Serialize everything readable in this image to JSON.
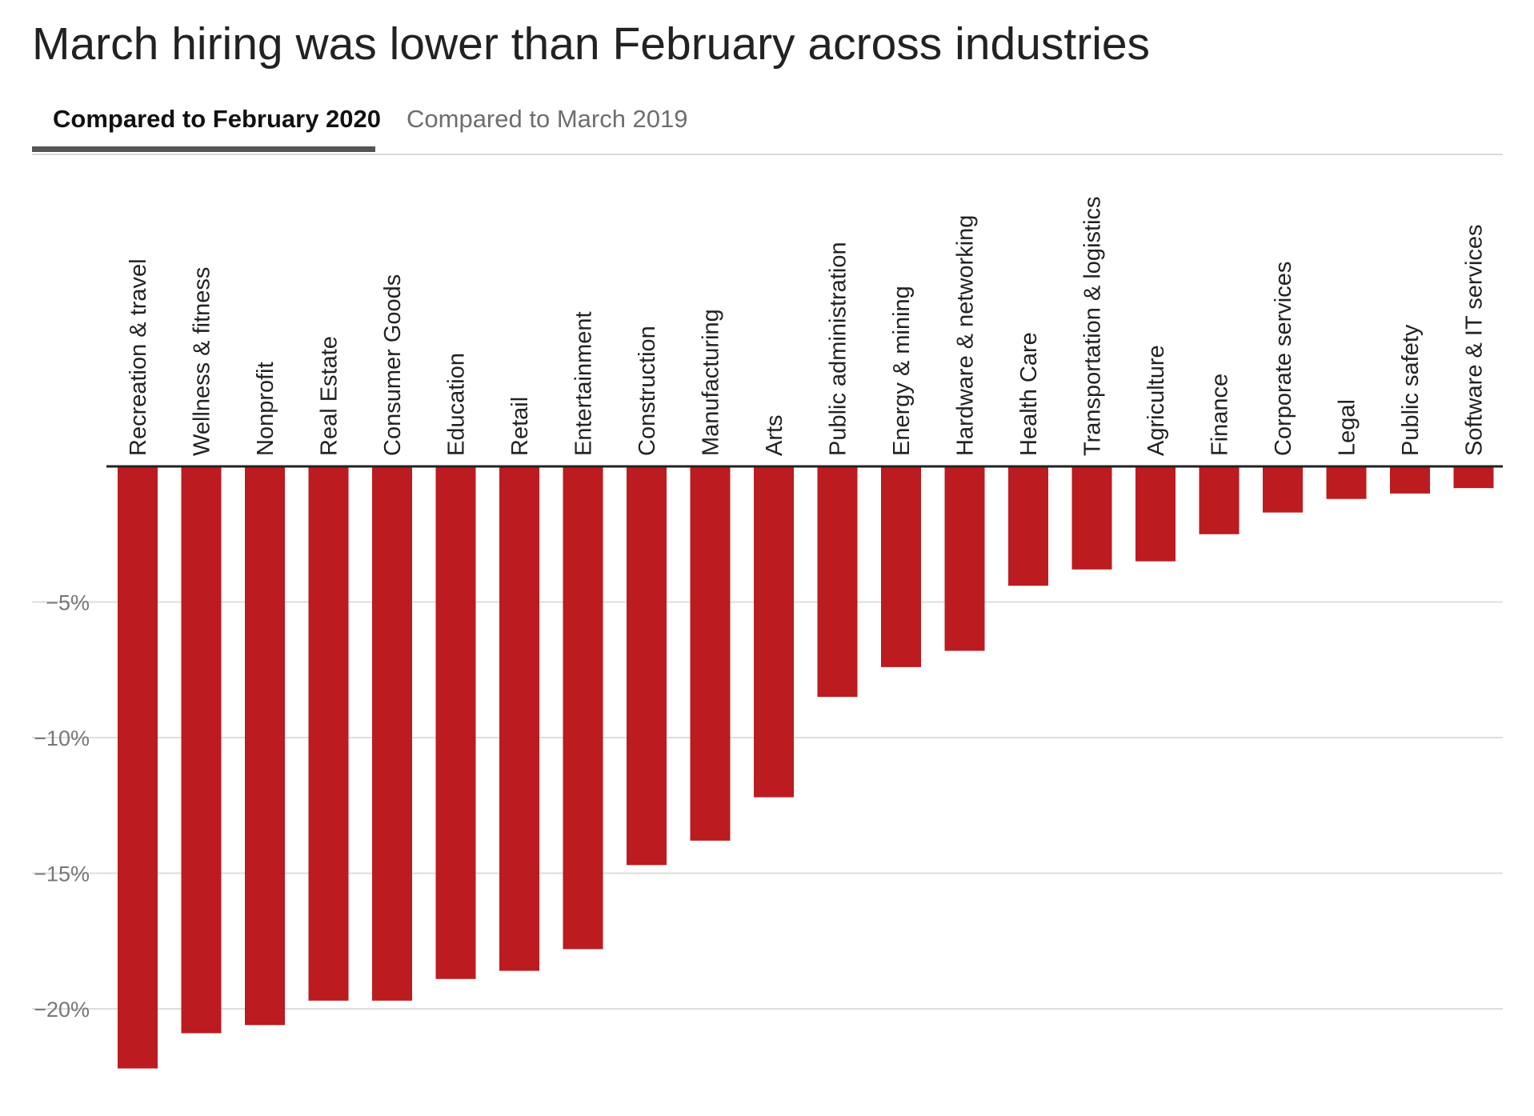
{
  "title": "March hiring was lower than February across industries",
  "tabs": [
    {
      "label": "Compared to February 2020",
      "active": true
    },
    {
      "label": "Compared to March 2019",
      "active": false
    }
  ],
  "colors": {
    "bar": "#bc1b1f",
    "gridline": "#dddddd",
    "baseline": "#222222",
    "tick_text": "#777777"
  },
  "chart_data": {
    "type": "bar",
    "title": "",
    "xlabel": "",
    "ylabel": "",
    "ylim": [
      -23,
      0
    ],
    "grid": true,
    "y_ticks": [
      -5,
      -10,
      -15,
      -20
    ],
    "y_tick_labels": [
      "−5%",
      "−10%",
      "−15%",
      "−20%"
    ],
    "categories": [
      "Recreation & travel",
      "Wellness & fitness",
      "Nonprofit",
      "Real Estate",
      "Consumer Goods",
      "Education",
      "Retail",
      "Entertainment",
      "Construction",
      "Manufacturing",
      "Arts",
      "Public administration",
      "Energy & mining",
      "Hardware & networking",
      "Health Care",
      "Transportation & logistics",
      "Agriculture",
      "Finance",
      "Corporate services",
      "Legal",
      "Public safety",
      "Software & IT services"
    ],
    "values": [
      -22.2,
      -20.9,
      -20.6,
      -19.7,
      -19.7,
      -18.9,
      -18.6,
      -17.8,
      -14.7,
      -13.8,
      -12.2,
      -8.5,
      -7.4,
      -6.8,
      -4.4,
      -3.8,
      -3.5,
      -2.5,
      -1.7,
      -1.2,
      -1.0,
      -0.8
    ]
  }
}
